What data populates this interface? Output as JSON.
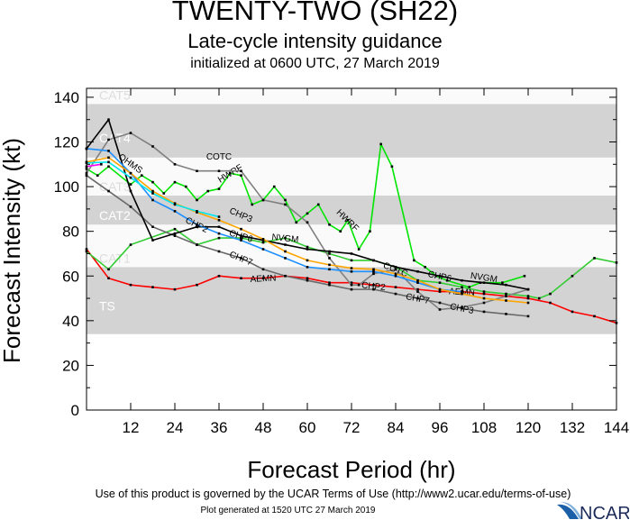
{
  "header": {
    "title": "TWENTY-TWO (SH22)",
    "subtitle": "Late-cycle intensity guidance",
    "initialized": "initialized at 0600 UTC, 27 March 2019"
  },
  "footer": {
    "terms": "Use of this product is governed by the UCAR Terms of Use (http://www2.ucar.edu/terms-of-use)",
    "generated": "Plot generated at 1520 UTC   27 March 2019",
    "logo_text": "NCAR"
  },
  "chart_data": {
    "type": "line",
    "title": "TWENTY-TWO (SH22)",
    "xlabel": "Forecast Period (hr)",
    "ylabel": "Forecast Intensity (kt)",
    "xlim": [
      0,
      144
    ],
    "ylim": [
      0,
      144
    ],
    "xticks": [
      12,
      24,
      36,
      48,
      60,
      72,
      84,
      96,
      108,
      120,
      132,
      144
    ],
    "yticks": [
      0,
      20,
      40,
      60,
      80,
      100,
      120,
      140
    ],
    "grid": false,
    "legend": "none (labels on lines)",
    "category_bands": [
      {
        "label": "TS",
        "from": 34,
        "to": 64,
        "color": "#d3d3d3"
      },
      {
        "label": "CAT1",
        "from": 64,
        "to": 83,
        "color": "#fafafa"
      },
      {
        "label": "CAT2",
        "from": 83,
        "to": 96,
        "color": "#d3d3d3"
      },
      {
        "label": "CAT3",
        "from": 96,
        "to": 113,
        "color": "#fafafa"
      },
      {
        "label": "CAT4",
        "from": 113,
        "to": 137,
        "color": "#d3d3d3"
      },
      {
        "label": "CAT5",
        "from": 137,
        "to": 144,
        "color": "#fafafa"
      }
    ],
    "series": [
      {
        "name": "AEMN",
        "color": "#ff0000",
        "points": [
          [
            0,
            72
          ],
          [
            6,
            59
          ],
          [
            12,
            56
          ],
          [
            18,
            55
          ],
          [
            24,
            54
          ],
          [
            30,
            56
          ],
          [
            36,
            60
          ],
          [
            42,
            59
          ],
          [
            48,
            59
          ],
          [
            54,
            60
          ],
          [
            60,
            59
          ],
          [
            66,
            57
          ],
          [
            72,
            57
          ],
          [
            78,
            56
          ],
          [
            84,
            55
          ],
          [
            90,
            54
          ],
          [
            96,
            53
          ],
          [
            102,
            53
          ],
          [
            108,
            52
          ],
          [
            114,
            51
          ],
          [
            120,
            50
          ],
          [
            126,
            48
          ],
          [
            132,
            44
          ],
          [
            138,
            42
          ],
          [
            144,
            39
          ]
        ]
      },
      {
        "name": "HWRF",
        "color": "#00e600",
        "points": [
          [
            0,
            108
          ],
          [
            3,
            105
          ],
          [
            6,
            109
          ],
          [
            12,
            101
          ],
          [
            15,
            105
          ],
          [
            18,
            102
          ],
          [
            21,
            97
          ],
          [
            24,
            102
          ],
          [
            27,
            100
          ],
          [
            30,
            94
          ],
          [
            33,
            98
          ],
          [
            36,
            99
          ],
          [
            39,
            106
          ],
          [
            42,
            105
          ],
          [
            45,
            92
          ],
          [
            48,
            94
          ],
          [
            51,
            100
          ],
          [
            54,
            94
          ],
          [
            57,
            84
          ],
          [
            60,
            88
          ],
          [
            63,
            92
          ],
          [
            66,
            83
          ],
          [
            69,
            80
          ],
          [
            71,
            85
          ],
          [
            74,
            72
          ],
          [
            77,
            80
          ],
          [
            80,
            119
          ],
          [
            83,
            109
          ],
          [
            89,
            67
          ],
          [
            92,
            64
          ],
          [
            95,
            60
          ],
          [
            98,
            58
          ],
          [
            104,
            55
          ],
          [
            107,
            57
          ],
          [
            113,
            57
          ],
          [
            119,
            60
          ]
        ]
      },
      {
        "name": "NVGM",
        "color": "#33cc33",
        "points": [
          [
            0,
            71
          ],
          [
            6,
            63
          ],
          [
            12,
            74
          ],
          [
            24,
            81
          ],
          [
            30,
            74
          ],
          [
            36,
            77
          ],
          [
            42,
            77
          ],
          [
            48,
            75
          ],
          [
            54,
            77
          ],
          [
            60,
            73
          ],
          [
            66,
            70
          ],
          [
            72,
            67
          ],
          [
            78,
            67
          ],
          [
            84,
            64
          ],
          [
            90,
            58
          ],
          [
            96,
            57
          ],
          [
            102,
            55
          ],
          [
            108,
            53
          ],
          [
            114,
            52
          ],
          [
            120,
            51
          ],
          [
            123,
            50
          ],
          [
            126,
            52
          ],
          [
            132,
            60
          ],
          [
            138,
            68
          ],
          [
            144,
            66
          ]
        ]
      },
      {
        "name": "COTC",
        "color": "#808080",
        "points": [
          [
            0,
            106
          ],
          [
            6,
            121
          ],
          [
            12,
            124
          ],
          [
            18,
            118
          ],
          [
            24,
            110
          ],
          [
            30,
            107
          ],
          [
            36,
            107
          ],
          [
            42,
            107
          ],
          [
            48,
            94
          ],
          [
            54,
            92
          ],
          [
            60,
            84
          ],
          [
            66,
            68
          ],
          [
            72,
            56
          ],
          [
            74,
            56
          ],
          [
            78,
            61
          ],
          [
            84,
            63
          ],
          [
            90,
            53
          ],
          [
            96,
            45
          ],
          [
            102,
            46
          ],
          [
            108,
            48
          ],
          [
            114,
            51
          ],
          [
            120,
            54
          ]
        ]
      },
      {
        "name": "CHP7",
        "color": "#696969",
        "points": [
          [
            0,
            105
          ],
          [
            6,
            98
          ],
          [
            12,
            91
          ],
          [
            18,
            82
          ],
          [
            24,
            78
          ],
          [
            30,
            74
          ],
          [
            36,
            71
          ],
          [
            42,
            68
          ],
          [
            48,
            63
          ],
          [
            54,
            60
          ],
          [
            60,
            58
          ],
          [
            66,
            56
          ],
          [
            72,
            54
          ],
          [
            78,
            54
          ],
          [
            84,
            52
          ],
          [
            90,
            50
          ],
          [
            96,
            48
          ],
          [
            102,
            45.5
          ],
          [
            108,
            44
          ],
          [
            114,
            43
          ],
          [
            120,
            42
          ]
        ]
      },
      {
        "name": "CHP6",
        "color": "#000000",
        "points": [
          [
            0,
            117
          ],
          [
            6,
            130
          ],
          [
            12,
            98
          ],
          [
            18,
            76
          ],
          [
            24,
            79
          ],
          [
            30,
            82
          ],
          [
            36,
            82
          ],
          [
            42,
            78
          ],
          [
            48,
            76
          ],
          [
            54,
            74
          ],
          [
            60,
            72
          ],
          [
            66,
            71
          ],
          [
            72,
            70
          ],
          [
            78,
            67
          ],
          [
            84,
            64
          ],
          [
            90,
            62
          ],
          [
            96,
            60
          ],
          [
            102,
            58
          ],
          [
            108,
            57
          ],
          [
            114,
            56
          ],
          [
            120,
            54
          ]
        ]
      },
      {
        "name": "CHP2",
        "color": "#1e90ff",
        "points": [
          [
            0,
            117
          ],
          [
            6,
            116
          ],
          [
            12,
            106
          ],
          [
            18,
            94
          ],
          [
            24,
            89
          ],
          [
            30,
            83
          ],
          [
            36,
            79
          ],
          [
            42,
            76
          ],
          [
            48,
            72
          ],
          [
            54,
            68
          ],
          [
            60,
            64
          ],
          [
            66,
            63
          ],
          [
            72,
            62
          ],
          [
            78,
            62
          ],
          [
            84,
            60
          ],
          [
            90,
            57
          ],
          [
            96,
            54
          ],
          [
            102,
            53
          ]
        ]
      },
      {
        "name": "CHP3",
        "color": "#ffa500",
        "points": [
          [
            0,
            111
          ],
          [
            6,
            113
          ],
          [
            12,
            106
          ],
          [
            18,
            98
          ],
          [
            24,
            92.5
          ],
          [
            30,
            88.5
          ],
          [
            36,
            85
          ],
          [
            42,
            81
          ],
          [
            48,
            76.5
          ],
          [
            54,
            71
          ],
          [
            60,
            67
          ],
          [
            66,
            65
          ],
          [
            72,
            63.5
          ],
          [
            78,
            63
          ],
          [
            84,
            61
          ],
          [
            90,
            58
          ],
          [
            96,
            54
          ],
          [
            102,
            52
          ],
          [
            108,
            50
          ],
          [
            114,
            49
          ],
          [
            120,
            48
          ]
        ]
      },
      {
        "name": "OHMS",
        "color": "#00e5ee",
        "points": [
          [
            0,
            110.6
          ],
          [
            6,
            111
          ],
          [
            12,
            104
          ],
          [
            18,
            97
          ],
          [
            24,
            92
          ],
          [
            30,
            89
          ],
          [
            36,
            86.5
          ]
        ]
      },
      {
        "name": "",
        "color": "#ff00ff",
        "points": [
          [
            0,
            109
          ],
          [
            4,
            110
          ]
        ]
      }
    ]
  }
}
